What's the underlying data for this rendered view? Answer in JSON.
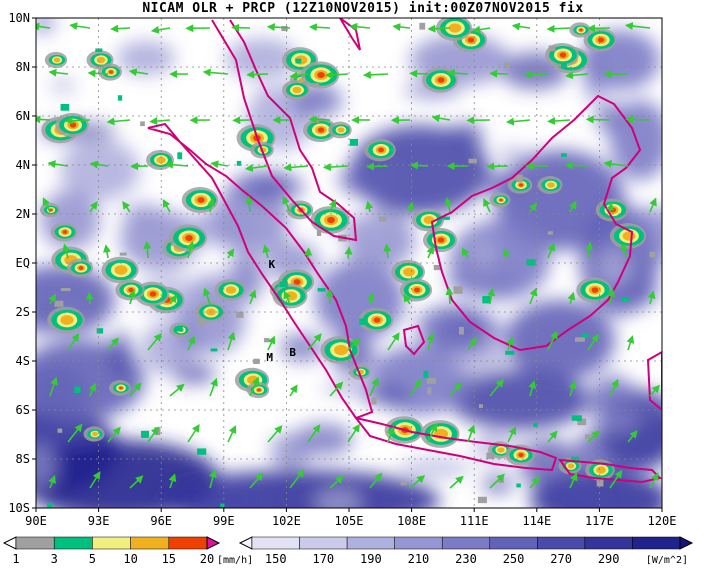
{
  "title": "NICAM OLR + PRCP (12Z10NOV2015) init:00Z07NOV2015 fix",
  "map": {
    "lon_range": [
      90,
      120
    ],
    "lat_range": [
      -10,
      10
    ],
    "x_ticks": [
      "90E",
      "93E",
      "96E",
      "99E",
      "102E",
      "105E",
      "108E",
      "111E",
      "114E",
      "117E",
      "120E"
    ],
    "y_ticks": [
      "10N",
      "8N",
      "6N",
      "4N",
      "2N",
      "EQ",
      "2S",
      "4S",
      "6S",
      "8S",
      "10S"
    ],
    "place_labels": [
      {
        "text": "K",
        "lon": 101.3,
        "lat": -0.2
      },
      {
        "text": "M",
        "lon": 101.2,
        "lat": -4.0
      },
      {
        "text": "B",
        "lon": 102.3,
        "lat": -3.8
      }
    ],
    "colors": {
      "coast": "#d0007a",
      "wind": "#33cc33",
      "background": "#ffffff"
    }
  },
  "precip_colorbar": {
    "labels": [
      "1",
      "3",
      "5",
      "10",
      "15",
      "20"
    ],
    "unit": "[mm/h]",
    "colors": [
      "#ffffff",
      "#a0a0a0",
      "#00c080",
      "#f0f080",
      "#f0b020",
      "#f04000",
      "#e010a0"
    ]
  },
  "olr_colorbar": {
    "labels": [
      "150",
      "170",
      "190",
      "210",
      "230",
      "250",
      "270",
      "290"
    ],
    "unit": "[W/m^2]",
    "colors": [
      "#f4f4fc",
      "#e2e2f4",
      "#cacaea",
      "#b0b0de",
      "#9696d2",
      "#7c7cc6",
      "#6262b8",
      "#4a4aaa",
      "#34349c",
      "#22228e",
      "#141480"
    ]
  }
}
